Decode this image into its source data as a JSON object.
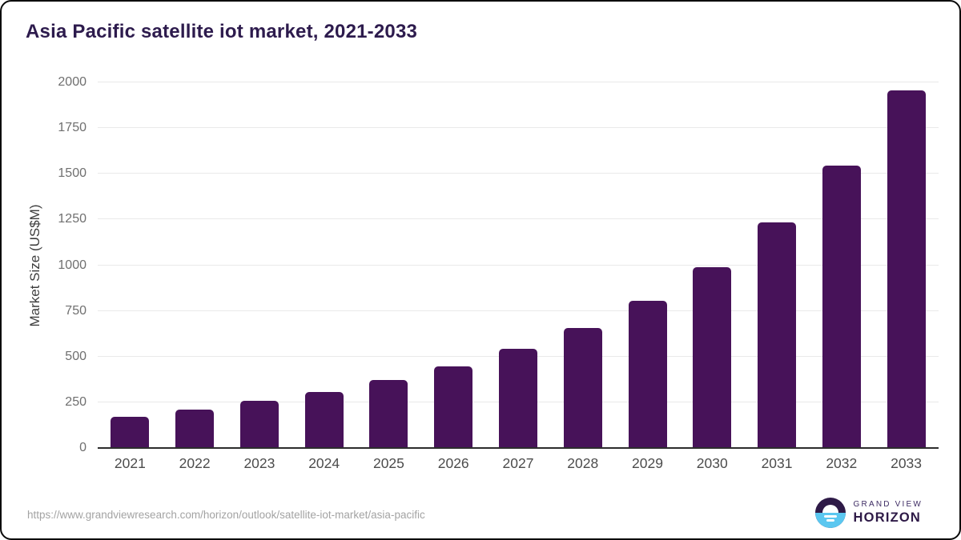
{
  "header": {
    "title": "Asia Pacific satellite iot market, 2021-2033"
  },
  "chart_data": {
    "type": "bar",
    "title": "Asia Pacific satellite iot market, 2021-2033",
    "categories": [
      "2021",
      "2022",
      "2023",
      "2024",
      "2025",
      "2026",
      "2027",
      "2028",
      "2029",
      "2030",
      "2031",
      "2032",
      "2033"
    ],
    "values": [
      171,
      211,
      257,
      308,
      371,
      448,
      543,
      658,
      804,
      990,
      1233,
      1543,
      1955
    ],
    "xlabel": "",
    "ylabel": "Market Size (US$M)",
    "ylim": [
      0,
      2000
    ],
    "yticks": [
      0,
      250,
      500,
      750,
      1000,
      1250,
      1500,
      1750,
      2000
    ],
    "grid": "horizontal",
    "legend": "none",
    "bar_color": "#471259"
  },
  "footer": {
    "source_url": "https://www.grandviewresearch.com/horizon/outlook/satellite-iot-market/asia-pacific",
    "logo": {
      "line1": "GRAND VIEW",
      "line2": "HORIZON"
    }
  },
  "colors": {
    "bar": "#471259",
    "title_text": "#2d1b4d",
    "grid": "#e9e9e9",
    "axis": "#2d2d2d",
    "logo_dark": "#2e1a47",
    "logo_blue": "#5bc7f0"
  }
}
